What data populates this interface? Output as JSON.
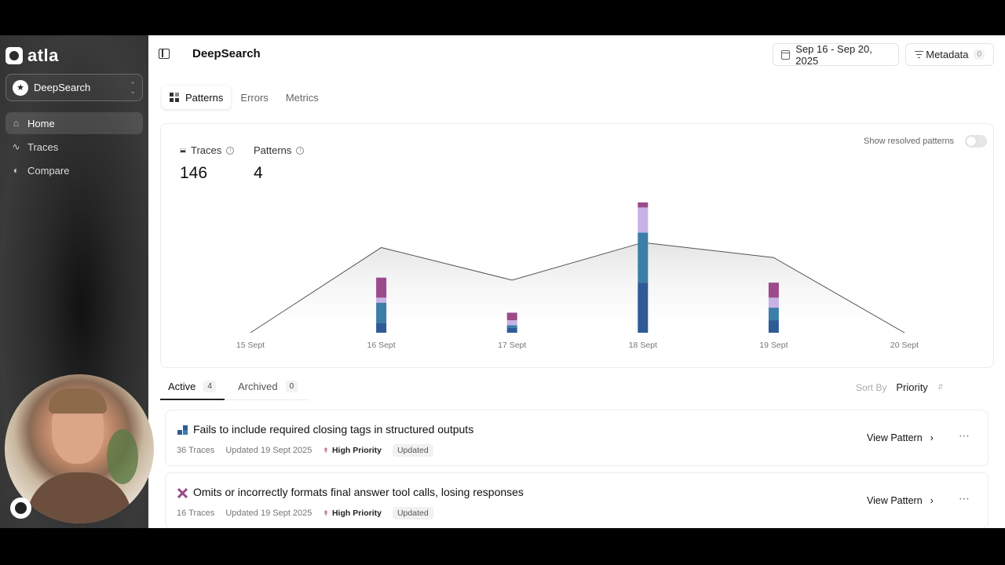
{
  "sidebar": {
    "logo": "atla",
    "project": {
      "name": "DeepSearch"
    },
    "nav": [
      {
        "label": "Home",
        "icon": "home-icon",
        "active": true
      },
      {
        "label": "Traces",
        "icon": "traces-icon",
        "active": false
      },
      {
        "label": "Compare",
        "icon": "compare-icon",
        "active": false
      }
    ]
  },
  "header": {
    "title": "DeepSearch",
    "date_range": "Sep 16 - Sep 20, 2025",
    "metadata_label": "Metadata",
    "metadata_count": "0"
  },
  "tabs": [
    {
      "label": "Patterns",
      "active": true
    },
    {
      "label": "Errors",
      "active": false
    },
    {
      "label": "Metrics",
      "active": false
    }
  ],
  "stats": {
    "traces_label": "Traces",
    "traces_value": "146",
    "patterns_label": "Patterns",
    "patterns_value": "4",
    "show_resolved_label": "Show resolved patterns"
  },
  "chart_data": {
    "type": "area",
    "categories": [
      "15 Sept",
      "16 Sept",
      "17 Sept",
      "18 Sept",
      "19 Sept",
      "20 Sept"
    ],
    "area_values": [
      0,
      34,
      21,
      36,
      30,
      0
    ],
    "stacked_bars": [
      {
        "x": "16 Sept",
        "segments": [
          4,
          8,
          2,
          8
        ]
      },
      {
        "x": "17 Sept",
        "segments": [
          2,
          1,
          2,
          3
        ]
      },
      {
        "x": "18 Sept",
        "segments": [
          20,
          20,
          10,
          2
        ]
      },
      {
        "x": "19 Sept",
        "segments": [
          5,
          5,
          4,
          6
        ]
      }
    ],
    "segment_colors": [
      "#2e5b96",
      "#3b7ea8",
      "#c7b1e6",
      "#9c4a8a"
    ],
    "ylim": [
      0,
      52
    ],
    "grid": false
  },
  "list": {
    "tabs": [
      {
        "label": "Active",
        "count": "4"
      },
      {
        "label": "Archived",
        "count": "0"
      }
    ],
    "sort_label": "Sort By",
    "sort_value": "Priority",
    "items": [
      {
        "title": "Fails to include required closing tags in structured outputs",
        "traces": "36 Traces",
        "updated": "Updated 19 Sept 2025",
        "priority": "High Priority",
        "badge": "Updated",
        "action": "View Pattern",
        "icon_color": "#2e5b96"
      },
      {
        "title": "Omits or incorrectly formats final answer tool calls, losing responses",
        "traces": "16 Traces",
        "updated": "Updated 19 Sept 2025",
        "priority": "High Priority",
        "badge": "Updated",
        "action": "View Pattern",
        "icon_color": "#9c4a8a"
      }
    ]
  }
}
